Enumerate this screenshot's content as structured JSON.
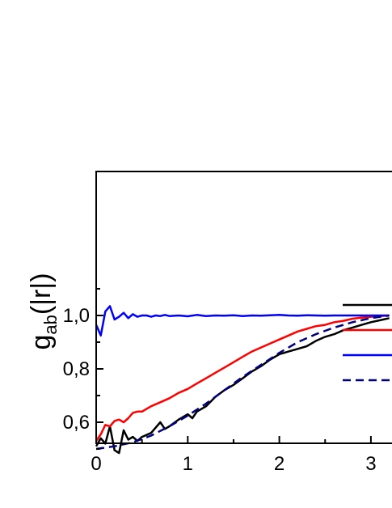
{
  "chart_data": {
    "type": "line",
    "title": "",
    "ylabel_main": "g",
    "ylabel_sub": "ab",
    "ylabel_rest": "(|r|)",
    "xlabel": "",
    "xlim": [
      0,
      3.2
    ],
    "ylim": [
      0.45,
      1.15
    ],
    "x_ticks": [
      0,
      1,
      2,
      3
    ],
    "x_tick_labels": [
      "0",
      "1",
      "2",
      "3"
    ],
    "y_ticks": [
      0.6,
      0.8,
      1.0
    ],
    "y_tick_labels": [
      "0,6",
      "0,8",
      "1,0"
    ],
    "grid": false,
    "legend": "right (labels cropped)",
    "series": [
      {
        "color": "#000000",
        "style": "solid",
        "x": [
          0.0,
          0.05,
          0.1,
          0.15,
          0.2,
          0.25,
          0.3,
          0.35,
          0.4,
          0.45,
          0.5,
          0.6,
          0.7,
          0.75,
          0.8,
          0.9,
          1.0,
          1.05,
          1.1,
          1.2,
          1.3,
          1.4,
          1.5,
          1.6,
          1.7,
          1.8,
          1.9,
          2.0,
          2.1,
          2.2,
          2.3,
          2.4,
          2.5,
          2.6,
          2.7,
          2.8,
          2.9,
          3.0,
          3.1,
          3.2
        ],
        "y": [
          0.51,
          0.54,
          0.52,
          0.585,
          0.495,
          0.485,
          0.57,
          0.535,
          0.545,
          0.53,
          0.545,
          0.56,
          0.6,
          0.575,
          0.585,
          0.61,
          0.63,
          0.615,
          0.64,
          0.66,
          0.695,
          0.72,
          0.74,
          0.765,
          0.79,
          0.81,
          0.835,
          0.855,
          0.865,
          0.875,
          0.885,
          0.905,
          0.92,
          0.93,
          0.945,
          0.955,
          0.965,
          0.975,
          0.982,
          0.99
        ]
      },
      {
        "color": "#ff0000",
        "style": "solid",
        "x": [
          0.0,
          0.05,
          0.1,
          0.15,
          0.2,
          0.25,
          0.3,
          0.35,
          0.4,
          0.45,
          0.5,
          0.6,
          0.7,
          0.8,
          0.9,
          1.0,
          1.1,
          1.2,
          1.3,
          1.4,
          1.5,
          1.6,
          1.7,
          1.8,
          1.9,
          2.0,
          2.1,
          2.2,
          2.3,
          2.4,
          2.5,
          2.6,
          2.7,
          2.8,
          2.9,
          3.0,
          3.1,
          3.2
        ],
        "y": [
          0.53,
          0.555,
          0.59,
          0.585,
          0.605,
          0.61,
          0.6,
          0.615,
          0.635,
          0.64,
          0.64,
          0.66,
          0.675,
          0.69,
          0.71,
          0.725,
          0.745,
          0.765,
          0.785,
          0.805,
          0.825,
          0.845,
          0.865,
          0.88,
          0.895,
          0.91,
          0.925,
          0.94,
          0.95,
          0.96,
          0.965,
          0.975,
          0.98,
          0.988,
          0.992,
          0.995,
          0.998,
          1.0
        ]
      },
      {
        "color": "#0000ff",
        "style": "solid",
        "x": [
          0.0,
          0.05,
          0.1,
          0.15,
          0.2,
          0.25,
          0.3,
          0.35,
          0.4,
          0.45,
          0.5,
          0.55,
          0.6,
          0.65,
          0.7,
          0.75,
          0.8,
          0.9,
          1.0,
          1.1,
          1.2,
          1.3,
          1.4,
          1.5,
          1.6,
          1.7,
          1.8,
          1.9,
          2.0,
          2.1,
          2.2,
          2.3,
          2.4,
          2.5,
          2.6,
          2.7,
          2.8,
          2.9,
          3.0,
          3.1,
          3.2
        ],
        "y": [
          0.965,
          0.925,
          1.015,
          1.035,
          0.985,
          0.995,
          1.01,
          0.99,
          1.005,
          0.995,
          1.0,
          1.0,
          0.995,
          1.0,
          0.998,
          1.002,
          0.998,
          1.0,
          0.997,
          1.002,
          0.998,
          1.0,
          0.999,
          1.001,
          0.998,
          1.0,
          0.999,
          1.001,
          1.002,
          1.0,
          0.999,
          1.001,
          1.0,
          0.999,
          1.0,
          1.0,
          1.0,
          1.0,
          1.0,
          1.0,
          1.0
        ]
      },
      {
        "color": "#00007f",
        "style": "dashed",
        "x": [
          0.0,
          0.2,
          0.4,
          0.6,
          0.8,
          1.0,
          1.2,
          1.4,
          1.6,
          1.8,
          2.0,
          2.2,
          2.4,
          2.6,
          2.8,
          3.0,
          3.2
        ],
        "y": [
          0.5,
          0.51,
          0.525,
          0.55,
          0.585,
          0.625,
          0.67,
          0.72,
          0.77,
          0.815,
          0.86,
          0.9,
          0.93,
          0.955,
          0.975,
          0.99,
          1.0
        ]
      }
    ]
  }
}
